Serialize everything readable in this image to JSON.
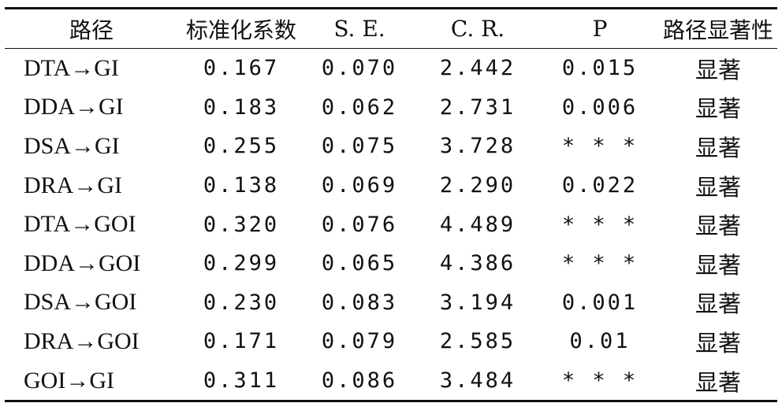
{
  "headers": [
    "路径",
    "标准化系数",
    "S. E.",
    "C. R.",
    "P",
    "路径显著性"
  ],
  "rows": [
    {
      "path": "DTA→GI",
      "coef": "0.167",
      "se": "0.070",
      "cr": "2.442",
      "p": "0.015",
      "sig": "显著"
    },
    {
      "path": "DDA→GI",
      "coef": "0.183",
      "se": "0.062",
      "cr": "2.731",
      "p": "0.006",
      "sig": "显著"
    },
    {
      "path": "DSA→GI",
      "coef": "0.255",
      "se": "0.075",
      "cr": "3.728",
      "p": "* * *",
      "sig": "显著"
    },
    {
      "path": "DRA→GI",
      "coef": "0.138",
      "se": "0.069",
      "cr": "2.290",
      "p": "0.022",
      "sig": "显著"
    },
    {
      "path": "DTA→GOI",
      "coef": "0.320",
      "se": "0.076",
      "cr": "4.489",
      "p": "* * *",
      "sig": "显著"
    },
    {
      "path": "DDA→GOI",
      "coef": "0.299",
      "se": "0.065",
      "cr": "4.386",
      "p": "* * *",
      "sig": "显著"
    },
    {
      "path": "DSA→GOI",
      "coef": "0.230",
      "se": "0.083",
      "cr": "3.194",
      "p": "0.001",
      "sig": "显著"
    },
    {
      "path": "DRA→GOI",
      "coef": "0.171",
      "se": "0.079",
      "cr": "2.585",
      "p": "0.01",
      "sig": "显著"
    },
    {
      "path": "GOI→GI",
      "coef": "0.311",
      "se": "0.086",
      "cr": "3.484",
      "p": "* * *",
      "sig": "显著"
    }
  ]
}
